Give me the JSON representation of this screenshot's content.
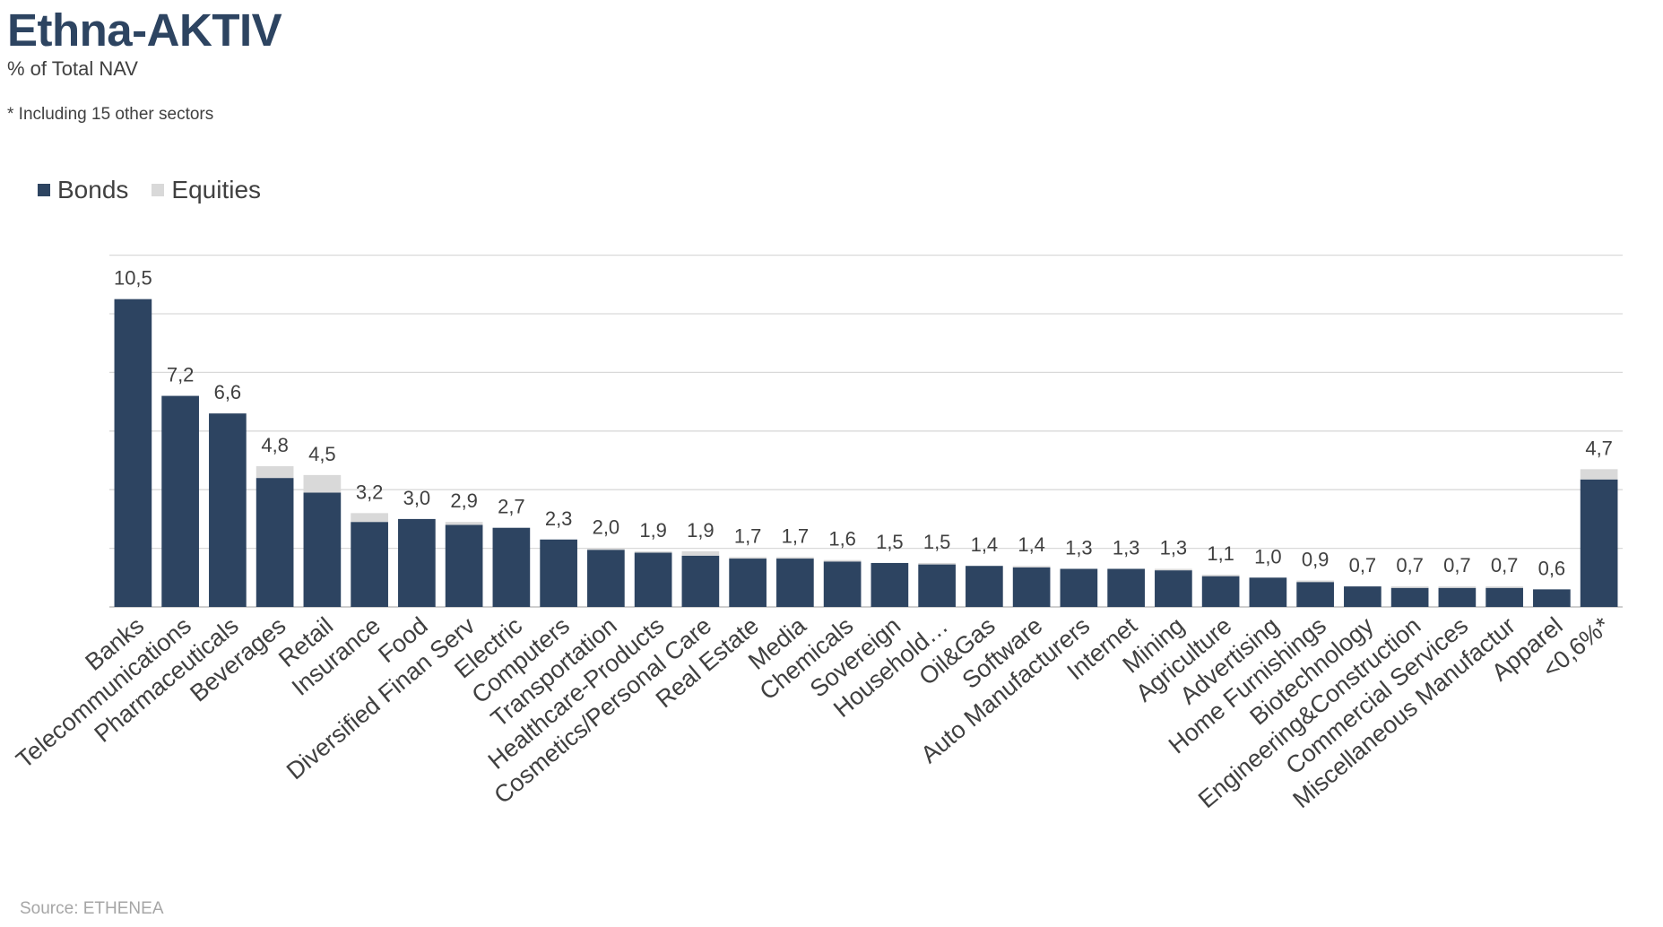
{
  "header": {
    "title": "Ethna-AKTIV",
    "subtitle": "% of Total NAV",
    "footnote": "* Including 15 other sectors"
  },
  "footer": {
    "source": "Source: ETHENEA"
  },
  "legend": [
    {
      "name": "Bonds",
      "color": "#2d4461"
    },
    {
      "name": "Equities",
      "color": "#d9d9d9"
    }
  ],
  "chart_data": {
    "type": "bar",
    "stacked": true,
    "title": "Ethna-AKTIV",
    "subtitle": "% of Total NAV",
    "ylim": [
      0,
      12
    ],
    "grid": true,
    "legend_position": "top-left",
    "categories": [
      "Banks",
      "Telecommunications",
      "Pharmaceuticals",
      "Beverages",
      "Retail",
      "Insurance",
      "Food",
      "Diversified Finan Serv",
      "Electric",
      "Computers",
      "Transportation",
      "Healthcare-Products",
      "Cosmetics/Personal Care",
      "Real Estate",
      "Media",
      "Chemicals",
      "Sovereign",
      "Household…",
      "Oil&Gas",
      "Software",
      "Auto Manufacturers",
      "Internet",
      "Mining",
      "Agriculture",
      "Advertising",
      "Home Furnishings",
      "Biotechnology",
      "Engineering&Construction",
      "Commercial Services",
      "Miscellaneous Manufactur",
      "Apparel",
      "<0,6%*"
    ],
    "series": [
      {
        "name": "Bonds",
        "color": "#2d4461",
        "values": [
          10.5,
          7.2,
          6.6,
          4.4,
          3.9,
          2.9,
          3.0,
          2.8,
          2.7,
          2.3,
          1.95,
          1.85,
          1.75,
          1.65,
          1.65,
          1.55,
          1.5,
          1.45,
          1.4,
          1.35,
          1.3,
          1.3,
          1.25,
          1.05,
          1.0,
          0.85,
          0.7,
          0.65,
          0.65,
          0.65,
          0.6,
          4.35
        ]
      },
      {
        "name": "Equities",
        "color": "#d9d9d9",
        "values": [
          0,
          0,
          0,
          0.4,
          0.6,
          0.3,
          0,
          0.1,
          0,
          0,
          0.05,
          0.05,
          0.15,
          0.05,
          0.05,
          0.05,
          0,
          0.05,
          0,
          0.05,
          0,
          0,
          0.05,
          0.05,
          0,
          0.05,
          0,
          0.05,
          0.05,
          0.05,
          0,
          0.35
        ]
      }
    ],
    "totals": [
      "10,5",
      "7,2",
      "6,6",
      "4,8",
      "4,5",
      "3,2",
      "3,0",
      "2,9",
      "2,7",
      "2,3",
      "2,0",
      "1,9",
      "1,9",
      "1,7",
      "1,7",
      "1,6",
      "1,5",
      "1,5",
      "1,4",
      "1,4",
      "1,3",
      "1,3",
      "1,3",
      "1,1",
      "1,0",
      "0,9",
      "0,7",
      "0,7",
      "0,7",
      "0,7",
      "0,6",
      "4,7"
    ]
  }
}
